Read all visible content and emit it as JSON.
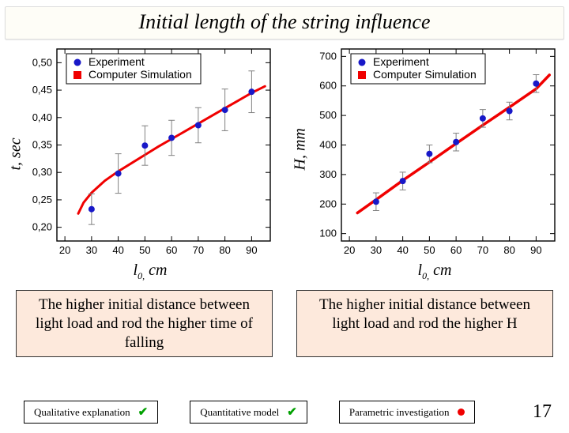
{
  "title": "Initial length of the string influence",
  "page_number": "17",
  "legend": {
    "experiment": "Experiment",
    "simulation": "Computer Simulation",
    "exp_color": "#1818c8",
    "sim_color": "#f00000"
  },
  "chart_left": {
    "type": "scatter+line",
    "ylabel": "t, sec",
    "xlabel_prefix": "l",
    "xlabel_sub": "0,",
    "xlabel_suffix": " cm",
    "xlim": [
      17,
      97
    ],
    "ylim": [
      0.175,
      0.525
    ],
    "xticks": [
      20,
      30,
      40,
      50,
      60,
      70,
      80,
      90
    ],
    "yticks": [
      0.2,
      0.25,
      0.3,
      0.35,
      0.4,
      0.45,
      0.5
    ],
    "ytick_labels": [
      "0,20",
      "0,25",
      "0,30",
      "0,35",
      "0,40",
      "0,45",
      "0,50"
    ],
    "curve_color": "#f00000",
    "curve_width": 3,
    "curve": [
      [
        25,
        0.225
      ],
      [
        27,
        0.245
      ],
      [
        30,
        0.263
      ],
      [
        35,
        0.285
      ],
      [
        40,
        0.302
      ],
      [
        45,
        0.317
      ],
      [
        50,
        0.332
      ],
      [
        55,
        0.347
      ],
      [
        60,
        0.361
      ],
      [
        65,
        0.375
      ],
      [
        70,
        0.389
      ],
      [
        75,
        0.403
      ],
      [
        80,
        0.417
      ],
      [
        85,
        0.431
      ],
      [
        90,
        0.445
      ],
      [
        95,
        0.457
      ]
    ],
    "points": [
      {
        "x": 30,
        "y": 0.233,
        "err": 0.028
      },
      {
        "x": 40,
        "y": 0.298,
        "err": 0.036
      },
      {
        "x": 50,
        "y": 0.349,
        "err": 0.036
      },
      {
        "x": 60,
        "y": 0.363,
        "err": 0.032
      },
      {
        "x": 70,
        "y": 0.386,
        "err": 0.032
      },
      {
        "x": 80,
        "y": 0.414,
        "err": 0.038
      },
      {
        "x": 90,
        "y": 0.447,
        "err": 0.038
      }
    ],
    "point_color": "#1818c8",
    "point_radius": 4,
    "errbar_color": "#808080",
    "axis_color": "#000000",
    "tick_font": 13
  },
  "chart_right": {
    "type": "scatter+line",
    "ylabel": "H, mm",
    "xlabel_prefix": "l",
    "xlabel_sub": "0,",
    "xlabel_suffix": " cm",
    "xlim": [
      17,
      97
    ],
    "ylim": [
      75,
      725
    ],
    "xticks": [
      20,
      30,
      40,
      50,
      60,
      70,
      80,
      90
    ],
    "yticks": [
      100,
      200,
      300,
      400,
      500,
      600,
      700
    ],
    "ytick_labels": [
      "100",
      "200",
      "300",
      "400",
      "500",
      "600",
      "700"
    ],
    "curve_color": "#f00000",
    "curve_width": 3.5,
    "curve": [
      [
        23,
        170
      ],
      [
        30,
        215
      ],
      [
        40,
        280
      ],
      [
        50,
        342
      ],
      [
        60,
        405
      ],
      [
        70,
        467
      ],
      [
        80,
        528
      ],
      [
        90,
        590
      ],
      [
        95,
        637
      ]
    ],
    "points": [
      {
        "x": 30,
        "y": 208,
        "err": 30
      },
      {
        "x": 40,
        "y": 278,
        "err": 30
      },
      {
        "x": 50,
        "y": 370,
        "err": 30
      },
      {
        "x": 60,
        "y": 410,
        "err": 30
      },
      {
        "x": 70,
        "y": 490,
        "err": 30
      },
      {
        "x": 80,
        "y": 515,
        "err": 30
      },
      {
        "x": 90,
        "y": 608,
        "err": 30
      }
    ],
    "point_color": "#1818c8",
    "point_radius": 4,
    "errbar_color": "#808080",
    "axis_color": "#000000",
    "tick_font": 13
  },
  "caption_left": "The higher initial distance between light load and rod the higher time of falling",
  "caption_right": "The higher initial distance between light load and rod the higher H",
  "badges": {
    "qualitative": "Qualitative explanation",
    "quantitative": "Quantitative model",
    "parametric": "Parametric investigation"
  }
}
